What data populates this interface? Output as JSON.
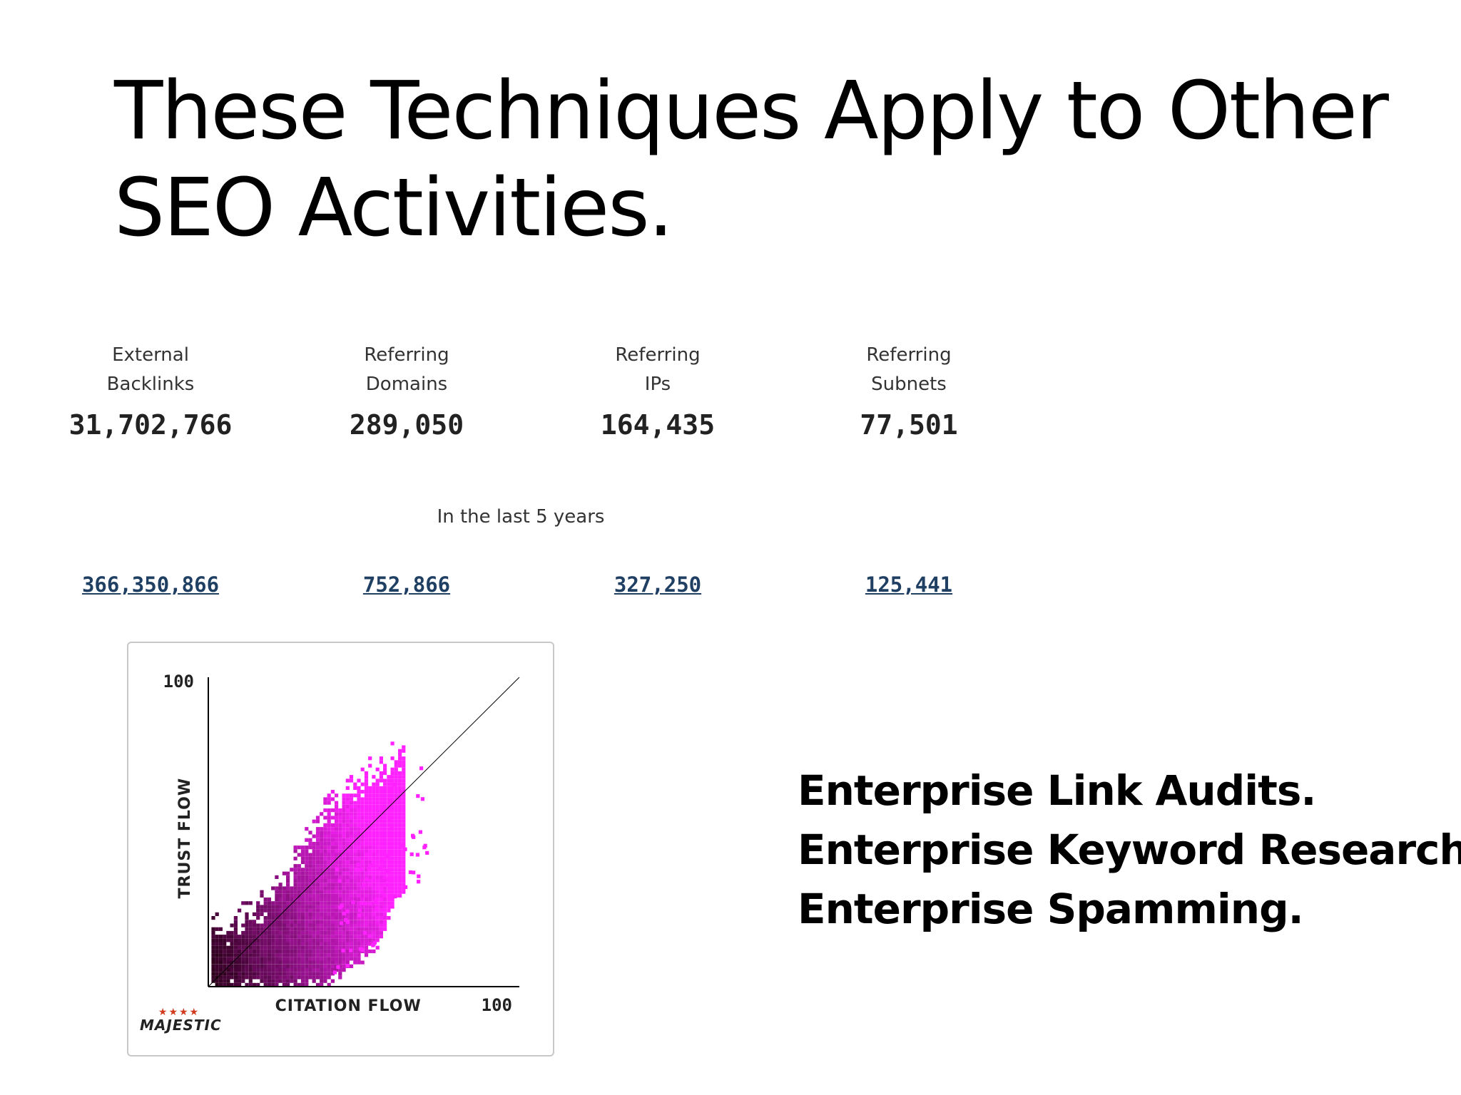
{
  "slide": {
    "title_line1": "These Techniques Apply to Other",
    "title_line2": "SEO Activities."
  },
  "stats": [
    {
      "label_line1": "External",
      "label_line2": "Backlinks",
      "value": "31,702,766",
      "historic": "366,350,866"
    },
    {
      "label_line1": "Referring",
      "label_line2": "Domains",
      "value": "289,050",
      "historic": "752,866"
    },
    {
      "label_line1": "Referring",
      "label_line2": "IPs",
      "value": "164,435",
      "historic": "327,250"
    },
    {
      "label_line1": "Referring",
      "label_line2": "Subnets",
      "value": "77,501",
      "historic": "125,441"
    }
  ],
  "period_label": "In the last 5 years",
  "chart_data": {
    "type": "heatmap",
    "xlabel": "CITATION FLOW",
    "ylabel": "TRUST FLOW",
    "xlim": [
      0,
      100
    ],
    "ylim": [
      0,
      100
    ],
    "x_tick_label": "100",
    "y_tick_label": "100",
    "diagonal_reference": {
      "from": [
        0,
        0
      ],
      "to": [
        100,
        100
      ]
    },
    "density_description_points": [
      {
        "cf": 5,
        "tf_low": 0,
        "tf_high": 20
      },
      {
        "cf": 15,
        "tf_low": 0,
        "tf_high": 25
      },
      {
        "cf": 25,
        "tf_low": 0,
        "tf_high": 38
      },
      {
        "cf": 35,
        "tf_low": 0,
        "tf_high": 55
      },
      {
        "cf": 45,
        "tf_low": 5,
        "tf_high": 65
      },
      {
        "cf": 55,
        "tf_low": 15,
        "tf_high": 72
      },
      {
        "cf": 60,
        "tf_low": 30,
        "tf_high": 75
      }
    ],
    "colors": {
      "low_density": "#ff22ff",
      "high_density": "#2a0018"
    },
    "grid": false,
    "brand": "MAJESTIC"
  },
  "bullets": [
    "Enterprise Link Audits.",
    "Enterprise Keyword Research.",
    "Enterprise Spamming."
  ]
}
